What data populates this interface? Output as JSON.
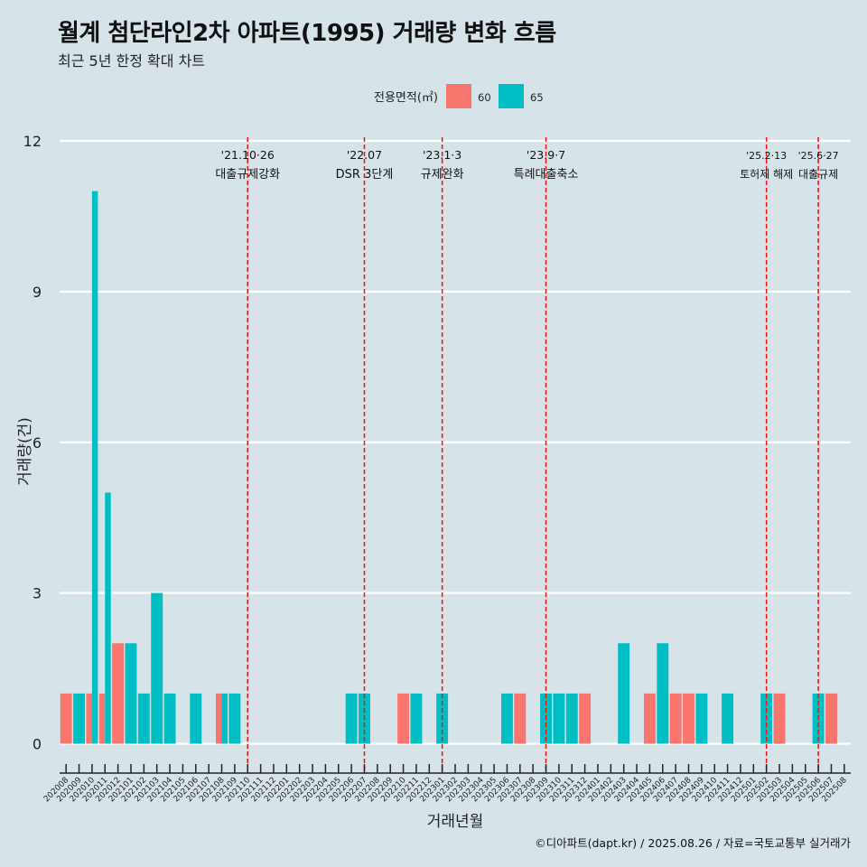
{
  "title": "월계 첨단라인2차 아파트(1995) 거래량 변화 흐름",
  "subtitle": "최근 5년 한정 확대 차트",
  "caption": "©디아파트(dapt.kr) / 2025.08.26 / 자료=국토교통부 실거래가",
  "chart_data": {
    "type": "bar",
    "xlabel": "거래년월",
    "ylabel": "거래량(건)",
    "ylim": [
      0,
      12
    ],
    "yticks": [
      0,
      3,
      6,
      9,
      12
    ],
    "legend": {
      "title": "전용면적(㎡)",
      "position": "top"
    },
    "colors": {
      "60": "#f8766d",
      "65": "#00bfc4"
    },
    "categories": [
      "202008",
      "202009",
      "202010",
      "202011",
      "202012",
      "202101",
      "202102",
      "202103",
      "202104",
      "202105",
      "202106",
      "202107",
      "202108",
      "202109",
      "202110",
      "202111",
      "202112",
      "202201",
      "202202",
      "202203",
      "202204",
      "202205",
      "202206",
      "202207",
      "202208",
      "202209",
      "202210",
      "202211",
      "202212",
      "202301",
      "202302",
      "202303",
      "202304",
      "202305",
      "202306",
      "202307",
      "202308",
      "202309",
      "202310",
      "202311",
      "202312",
      "202401",
      "202402",
      "202403",
      "202404",
      "202405",
      "202406",
      "202407",
      "202408",
      "202409",
      "202410",
      "202411",
      "202412",
      "202501",
      "202502",
      "202503",
      "202504",
      "202505",
      "202506",
      "202507",
      "202508"
    ],
    "series": [
      {
        "name": "60",
        "values": [
          1,
          0,
          1,
          1,
          2,
          0,
          0,
          0,
          0,
          0,
          0,
          0,
          1,
          0,
          0,
          0,
          0,
          0,
          0,
          0,
          0,
          0,
          0,
          0,
          0,
          0,
          1,
          0,
          0,
          0,
          0,
          0,
          0,
          0,
          0,
          1,
          0,
          0,
          0,
          0,
          1,
          0,
          0,
          0,
          0,
          1,
          0,
          1,
          1,
          0,
          0,
          0,
          0,
          0,
          0,
          1,
          0,
          0,
          0,
          1,
          0
        ]
      },
      {
        "name": "65",
        "values": [
          0,
          1,
          11,
          5,
          0,
          2,
          1,
          3,
          1,
          0,
          1,
          0,
          1,
          1,
          0,
          0,
          0,
          0,
          0,
          0,
          0,
          0,
          1,
          1,
          0,
          0,
          0,
          1,
          0,
          1,
          0,
          0,
          0,
          0,
          1,
          0,
          0,
          1,
          1,
          1,
          0,
          0,
          0,
          2,
          0,
          0,
          2,
          0,
          0,
          1,
          0,
          1,
          0,
          0,
          1,
          0,
          0,
          0,
          1,
          0,
          0
        ]
      }
    ],
    "events": [
      {
        "date_label": "'21.10·26",
        "text": "대출규제강화",
        "month": "202110"
      },
      {
        "date_label": "'22.07",
        "text": "DSR 3단계",
        "month": "202207"
      },
      {
        "date_label": "'23.1·3",
        "text": "규제완화",
        "month": "202301"
      },
      {
        "date_label": "'23.9·7",
        "text": "특례대출축소",
        "month": "202309"
      },
      {
        "date_label": "'25.2·13",
        "text": "토허제 해제",
        "month": "202502"
      },
      {
        "date_label": "'25.6·27",
        "text": "대출규제",
        "month": "202506"
      }
    ]
  }
}
